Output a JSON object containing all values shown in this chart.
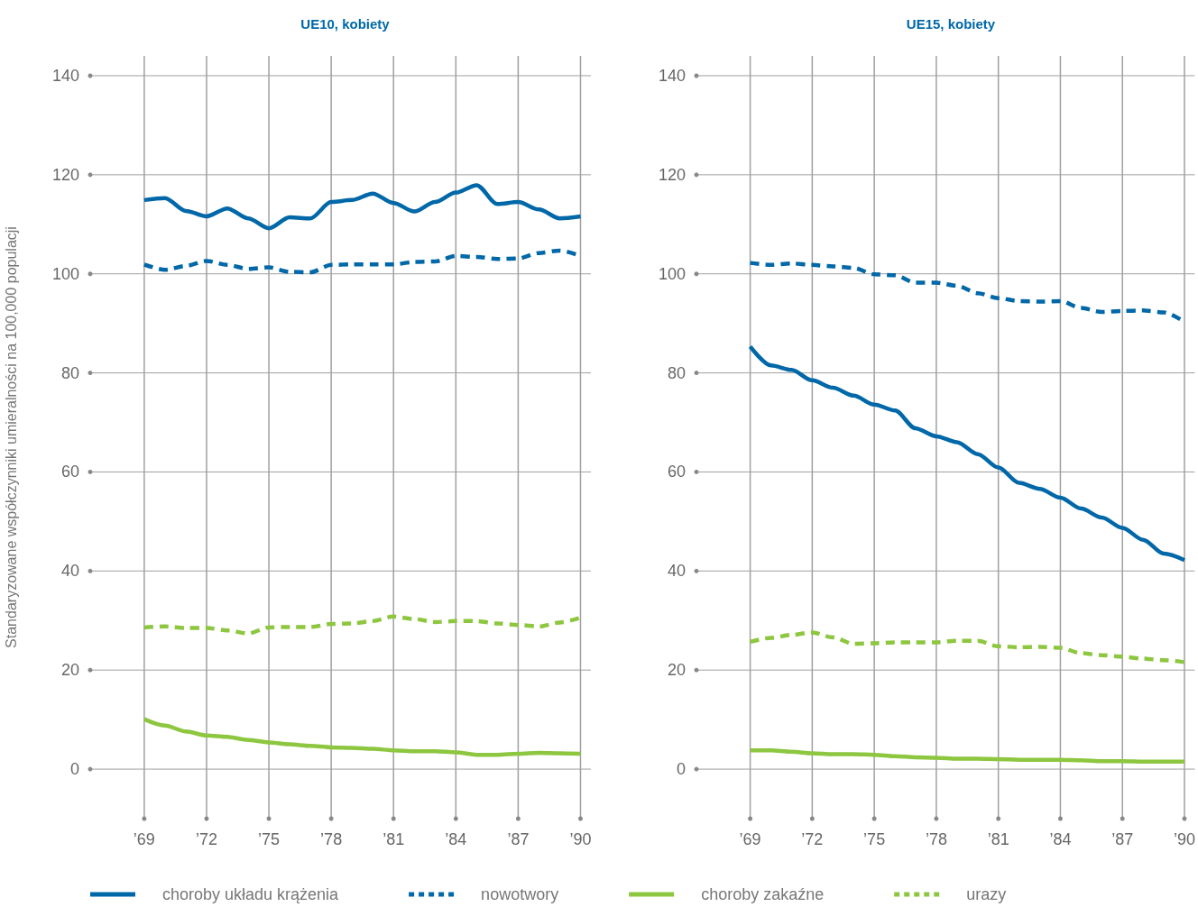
{
  "chart_data": [
    {
      "type": "line",
      "title": "UE10, kobiety",
      "ylabel": "Standaryzowane współczynniki umieralności na 100,000 populacji",
      "x": [
        1969,
        1970,
        1971,
        1972,
        1973,
        1974,
        1975,
        1976,
        1977,
        1978,
        1979,
        1980,
        1981,
        1982,
        1983,
        1984,
        1985,
        1986,
        1987,
        1988,
        1989,
        1990
      ],
      "series": [
        {
          "name": "choroby układu krążenia",
          "color": "#0068a8",
          "line_style": "solid",
          "values": [
            114.9,
            115.3,
            112.7,
            111.6,
            113.2,
            111.2,
            109.2,
            111.4,
            111.2,
            114.5,
            114.9,
            116.2,
            114.3,
            112.6,
            114.5,
            116.4,
            117.9,
            114.1,
            114.5,
            113.0,
            111.2,
            111.6
          ]
        },
        {
          "name": "nowotwory",
          "color": "#0068a8",
          "line_style": "dashed",
          "values": [
            101.9,
            100.8,
            101.6,
            102.6,
            101.8,
            101.0,
            101.3,
            100.4,
            100.3,
            101.8,
            101.9,
            101.9,
            101.9,
            102.4,
            102.5,
            103.6,
            103.4,
            103.0,
            103.1,
            104.2,
            104.7,
            103.6
          ]
        },
        {
          "name": "choroby zakaźne",
          "color": "#8dc63f",
          "line_style": "solid",
          "values": [
            10.1,
            8.8,
            7.6,
            6.8,
            6.5,
            5.9,
            5.4,
            5.0,
            4.7,
            4.4,
            4.3,
            4.1,
            3.8,
            3.6,
            3.6,
            3.4,
            2.9,
            2.9,
            3.1,
            3.3,
            3.2,
            3.1
          ]
        },
        {
          "name": "urazy",
          "color": "#8dc63f",
          "line_style": "dashed",
          "values": [
            28.6,
            28.8,
            28.5,
            28.5,
            28.0,
            27.4,
            28.6,
            28.7,
            28.7,
            29.3,
            29.4,
            29.9,
            30.8,
            30.3,
            29.7,
            29.9,
            29.9,
            29.4,
            29.1,
            28.8,
            29.6,
            30.6
          ]
        }
      ],
      "xlim": [
        1966.4,
        1990.5
      ],
      "xticks": [
        {
          "value": 1969,
          "label": "’69"
        },
        {
          "value": 1972,
          "label": "’72"
        },
        {
          "value": 1975,
          "label": "’75"
        },
        {
          "value": 1978,
          "label": "’78"
        },
        {
          "value": 1981,
          "label": "’81"
        },
        {
          "value": 1984,
          "label": "’84"
        },
        {
          "value": 1987,
          "label": "’87"
        },
        {
          "value": 1990,
          "label": "’90"
        }
      ],
      "ylim": [
        -10,
        144
      ],
      "yticks": [
        0,
        20,
        40,
        60,
        80,
        100,
        120,
        140
      ],
      "grid": true,
      "legend": "bottom",
      "marker": "none"
    },
    {
      "type": "line",
      "title": "UE15, kobiety",
      "x": [
        1969,
        1970,
        1971,
        1972,
        1973,
        1974,
        1975,
        1976,
        1977,
        1978,
        1979,
        1980,
        1981,
        1982,
        1983,
        1984,
        1985,
        1986,
        1987,
        1988,
        1989,
        1990
      ],
      "series": [
        {
          "color": "#0068a8",
          "line_style": "solid",
          "values": [
            85.3,
            81.5,
            80.6,
            78.5,
            77.0,
            75.4,
            73.6,
            72.4,
            68.8,
            67.2,
            66.0,
            63.6,
            60.9,
            57.8,
            56.6,
            54.8,
            52.6,
            50.8,
            48.7,
            46.3,
            43.5,
            42.2
          ]
        },
        {
          "color": "#0068a8",
          "line_style": "dashed",
          "values": [
            102.2,
            101.8,
            102.1,
            101.8,
            101.5,
            101.2,
            99.9,
            99.7,
            98.2,
            98.2,
            97.6,
            96.1,
            95.1,
            94.5,
            94.4,
            94.5,
            93.1,
            92.3,
            92.5,
            92.6,
            92.2,
            90.3
          ]
        },
        {
          "color": "#8dc63f",
          "line_style": "solid",
          "values": [
            3.8,
            3.8,
            3.5,
            3.2,
            3.0,
            3.0,
            2.9,
            2.6,
            2.4,
            2.3,
            2.1,
            2.1,
            2.0,
            1.9,
            1.9,
            1.9,
            1.8,
            1.6,
            1.6,
            1.5,
            1.5,
            1.5
          ]
        },
        {
          "color": "#8dc63f",
          "line_style": "dashed",
          "values": [
            25.7,
            26.5,
            27.1,
            27.6,
            26.6,
            25.3,
            25.4,
            25.6,
            25.6,
            25.6,
            25.9,
            25.9,
            24.8,
            24.6,
            24.7,
            24.5,
            23.4,
            23.0,
            22.7,
            22.3,
            22.0,
            21.6
          ]
        }
      ],
      "xlim": [
        1966.4,
        1990.5
      ],
      "xticks": [
        {
          "value": 1969,
          "label": "’69"
        },
        {
          "value": 1972,
          "label": "’72"
        },
        {
          "value": 1975,
          "label": "’75"
        },
        {
          "value": 1978,
          "label": "’78"
        },
        {
          "value": 1981,
          "label": "’81"
        },
        {
          "value": 1984,
          "label": "’84"
        },
        {
          "value": 1987,
          "label": "’87"
        },
        {
          "value": 1990,
          "label": "’90"
        }
      ],
      "ylim": [
        -10,
        144
      ],
      "yticks": [
        0,
        20,
        40,
        60,
        80,
        100,
        120,
        140
      ],
      "grid": true,
      "marker": "none"
    }
  ]
}
